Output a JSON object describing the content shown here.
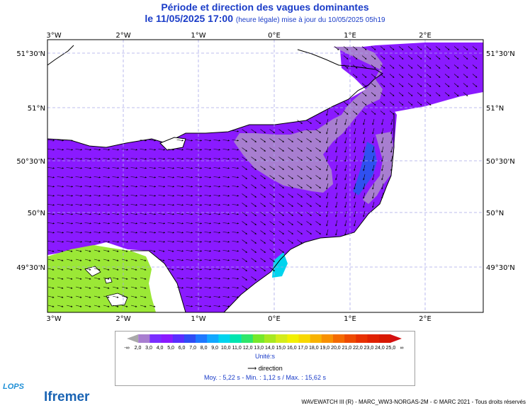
{
  "header": {
    "title": "Période et direction des vagues dominantes",
    "date_main": "le 11/05/2025 17:00",
    "date_note": "(heure légale) mise à jour du 10/05/2025 05h19"
  },
  "map": {
    "lon_labels": [
      "3°W",
      "2°W",
      "1°W",
      "0°E",
      "1°E",
      "2°E"
    ],
    "lat_labels": [
      "51°30'N",
      "51°N",
      "50°30'N",
      "50°N",
      "49°30'N"
    ],
    "colors": {
      "purple_main": "#8a1aff",
      "lavender_low": "#a87ed0",
      "blue_high": "#3050f0",
      "green_high": "#9be836",
      "white_land": "#ffffff",
      "grid": "#a8a8e8"
    }
  },
  "legend": {
    "ticks": [
      "-∞",
      "2,0",
      "3,0",
      "4,0",
      "5,0",
      "6,0",
      "7,0",
      "8,0",
      "9,0",
      "10,0",
      "11,0",
      "12,0",
      "13,0",
      "14,0",
      "15,0",
      "16,0",
      "17,0",
      "18,0",
      "19,0",
      "20,0",
      "21,0",
      "22,0",
      "23,0",
      "24,0",
      "25,0",
      "∞"
    ],
    "colors": [
      "#a9a9a9",
      "#a87ed0",
      "#7a2dff",
      "#8a1aff",
      "#5a2dff",
      "#2f4cf5",
      "#1e78ff",
      "#12a8ff",
      "#00d4ee",
      "#00e5b0",
      "#2ee66a",
      "#76e82a",
      "#a8e820",
      "#d4ec1a",
      "#f2f000",
      "#f8d800",
      "#f8b200",
      "#f89000",
      "#f46a00",
      "#ee4a00",
      "#e83000",
      "#e02000",
      "#d81800",
      "#d41010"
    ],
    "unit": "Unité:s",
    "direction": "direction",
    "stats": "Moy. : 5,22 s   -   Min. : 1,12 s / Max. : 15,62 s"
  },
  "footer": {
    "credits": "WAVEWATCH III (R) - MARC_WW3-NORGAS-2M - © MARC 2021 - Tous droits réservés",
    "logo_lops": "LOPS",
    "logo_ifremer": "Ifremer"
  }
}
